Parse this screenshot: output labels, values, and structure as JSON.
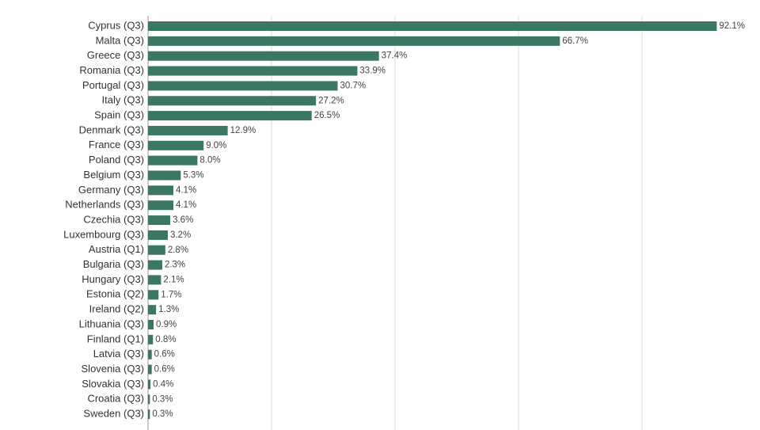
{
  "chart_data": {
    "type": "bar",
    "orientation": "horizontal",
    "categories": [
      "Cyprus (Q3)",
      "Malta (Q3)",
      "Greece (Q3)",
      "Romania (Q3)",
      "Portugal (Q3)",
      "Italy (Q3)",
      "Spain (Q3)",
      "Denmark (Q3)",
      "France (Q3)",
      "Poland (Q3)",
      "Belgium (Q3)",
      "Germany (Q3)",
      "Netherlands (Q3)",
      "Czechia (Q3)",
      "Luxembourg (Q3)",
      "Austria (Q1)",
      "Bulgaria (Q3)",
      "Hungary (Q3)",
      "Estonia (Q2)",
      "Ireland (Q2)",
      "Lithuania (Q3)",
      "Finland (Q1)",
      "Latvia (Q3)",
      "Slovenia (Q3)",
      "Slovakia (Q3)",
      "Croatia (Q3)",
      "Sweden (Q3)"
    ],
    "values": [
      92.1,
      66.7,
      37.4,
      33.9,
      30.7,
      27.2,
      26.5,
      12.9,
      9.0,
      8.0,
      5.3,
      4.1,
      4.1,
      3.6,
      3.2,
      2.8,
      2.3,
      2.1,
      1.7,
      1.3,
      0.9,
      0.8,
      0.6,
      0.6,
      0.4,
      0.3,
      0.3
    ],
    "value_labels": [
      "92.1%",
      "66.7%",
      "37.4%",
      "33.9%",
      "30.7%",
      "27.2%",
      "26.5%",
      "12.9%",
      "9.0%",
      "8.0%",
      "5.3%",
      "4.1%",
      "4.1%",
      "3.6%",
      "3.2%",
      "2.8%",
      "2.3%",
      "2.1%",
      "1.7%",
      "1.3%",
      "0.9%",
      "0.8%",
      "0.6%",
      "0.6%",
      "0.4%",
      "0.3%",
      "0.3%"
    ],
    "color": "#3b7765",
    "xlim": [
      0,
      100
    ],
    "xticks": [
      0,
      20,
      40,
      60,
      80
    ],
    "grid": true
  }
}
